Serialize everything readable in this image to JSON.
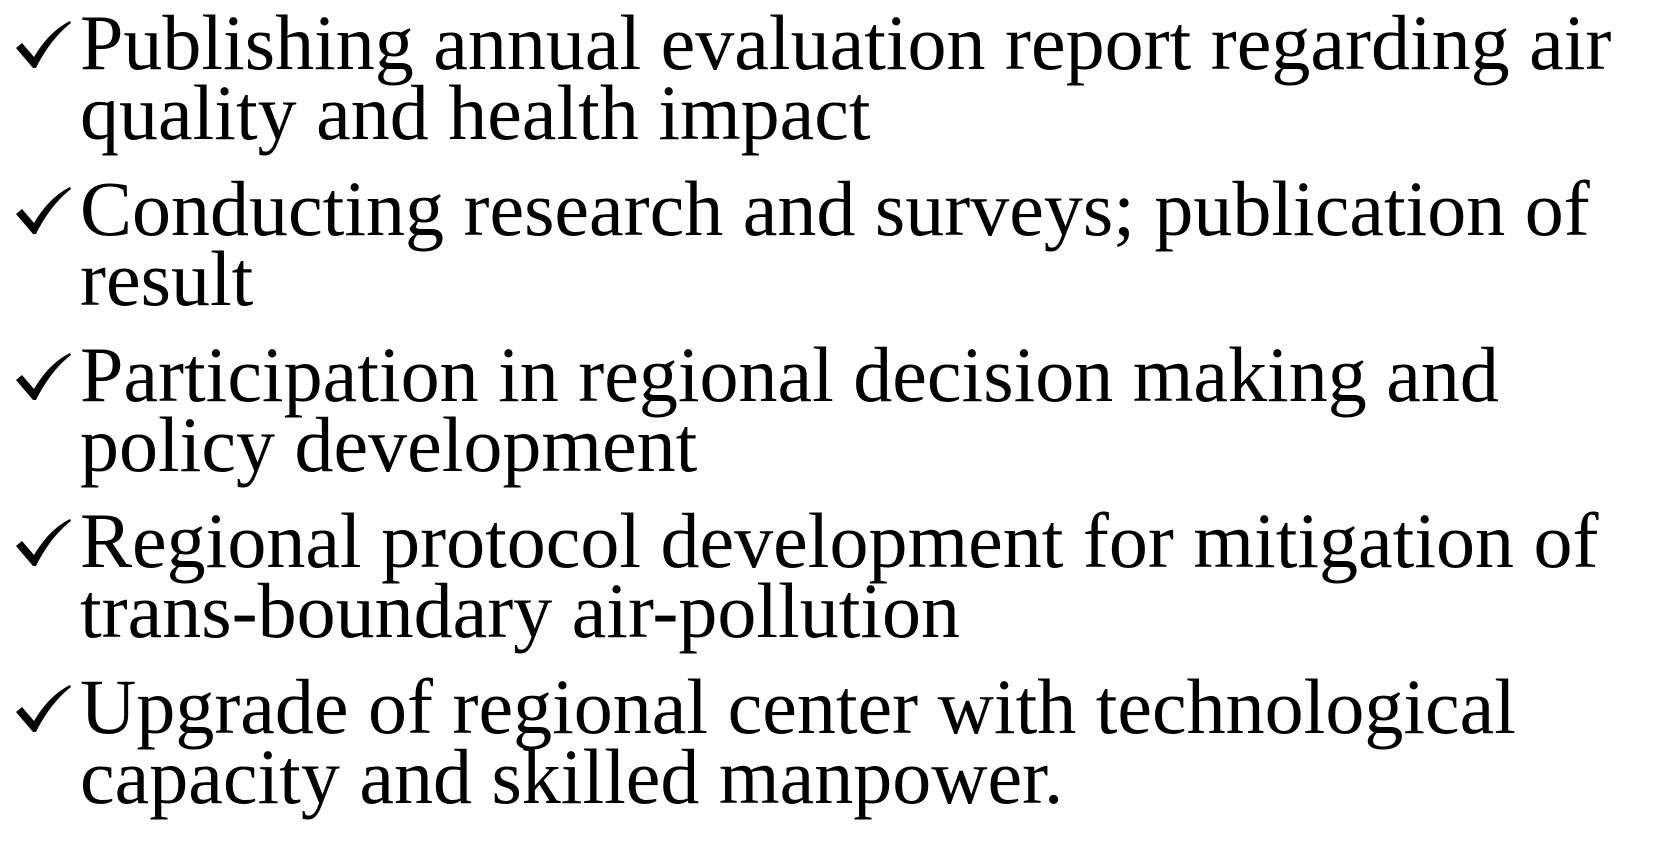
{
  "items": [
    {
      "lines": [
        "Publishing annual evaluation report regarding air",
        "quality and health impact"
      ]
    },
    {
      "lines": [
        "Conducting research and surveys; publication of",
        "result"
      ]
    },
    {
      "lines": [
        "Participation in regional decision making and",
        "policy development"
      ]
    },
    {
      "lines": [
        "Regional protocol development for mitigation of",
        "trans-boundary air-pollution"
      ]
    },
    {
      "lines": [
        "Upgrade of regional center with technological",
        "capacity and skilled manpower."
      ]
    }
  ]
}
